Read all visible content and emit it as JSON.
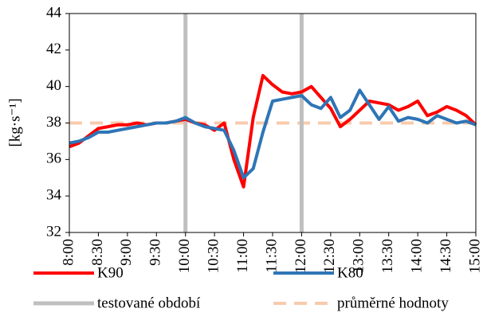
{
  "chart_data": {
    "type": "line",
    "ylabel": "[kg·s⁻¹]",
    "categories": [
      "8:00",
      null,
      null,
      "8:30",
      null,
      null,
      "9:00",
      null,
      null,
      "9:30",
      null,
      null,
      "10:00",
      null,
      null,
      "10:30",
      null,
      null,
      "11:00",
      null,
      null,
      "11:30",
      null,
      null,
      "12:00",
      null,
      null,
      "12:30",
      null,
      null,
      "13:00",
      null,
      null,
      "13:30",
      null,
      null,
      "14:00",
      null,
      null,
      "14:30",
      null,
      null,
      "15:00"
    ],
    "series": [
      {
        "name": "K90",
        "color": "#ff0000",
        "values": [
          36.7,
          36.9,
          37.3,
          37.7,
          37.8,
          37.9,
          37.9,
          38.0,
          37.9,
          38.0,
          38.0,
          38.1,
          38.2,
          38.0,
          37.9,
          37.6,
          38.0,
          36.0,
          34.5,
          38.3,
          40.6,
          40.1,
          39.7,
          39.6,
          39.7,
          40.0,
          39.4,
          38.8,
          37.8,
          38.2,
          38.7,
          39.2,
          39.1,
          39.0,
          38.7,
          38.9,
          39.2,
          38.4,
          38.6,
          38.9,
          38.7,
          38.4,
          37.9
        ]
      },
      {
        "name": "K80",
        "color": "#2e75b6",
        "values": [
          36.9,
          37.0,
          37.2,
          37.5,
          37.5,
          37.6,
          37.7,
          37.8,
          37.9,
          38.0,
          38.0,
          38.1,
          38.3,
          38.0,
          37.8,
          37.7,
          37.6,
          36.5,
          35.0,
          35.5,
          37.5,
          39.2,
          39.3,
          39.4,
          39.5,
          39.0,
          38.8,
          39.4,
          38.3,
          38.7,
          39.8,
          39.0,
          38.2,
          38.9,
          38.1,
          38.3,
          38.2,
          38.0,
          38.4,
          38.2,
          38.0,
          38.1,
          37.9
        ]
      },
      {
        "name": "testované období",
        "color": "#bfbfbf",
        "kind": "vline",
        "at": [
          "10:00",
          "12:00"
        ]
      },
      {
        "name": "průměrné hodnoty",
        "color": "#f8cbad",
        "kind": "hline",
        "dash": true,
        "value": 38
      }
    ],
    "ylim": [
      32,
      44
    ],
    "yticks": [
      32,
      34,
      36,
      38,
      40,
      42,
      44
    ],
    "grid": false
  }
}
